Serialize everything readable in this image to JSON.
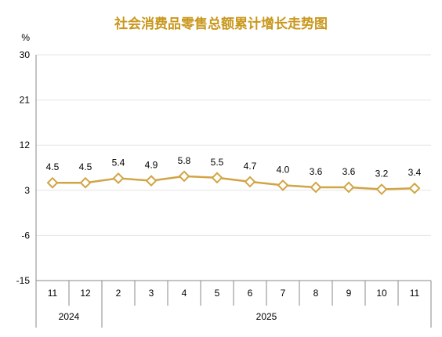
{
  "colors": {
    "title": "#C9971C",
    "series": "#D1A545",
    "marker_fill": "#FFFFFF",
    "gridline": "#E6E6E6",
    "axis": "#888888",
    "text": "#000000"
  },
  "chart_data": {
    "type": "line",
    "title": "社会消费品零售总额累计增长走势图",
    "ylabel": "%",
    "xlabel": "",
    "ylim": [
      -15,
      30
    ],
    "yticks": [
      "30",
      "21",
      "12",
      "3",
      "-6",
      "-15"
    ],
    "ytick_values": [
      30,
      21,
      12,
      3,
      -6,
      -15
    ],
    "grid": true,
    "legend": "none",
    "categories": [
      "11",
      "12",
      "2",
      "3",
      "4",
      "5",
      "6",
      "7",
      "8",
      "9",
      "10",
      "11"
    ],
    "year_groups": [
      {
        "label": "2024",
        "count": 2
      },
      {
        "label": "2025",
        "count": 10
      }
    ],
    "series": [
      {
        "values": [
          4.5,
          4.5,
          5.4,
          4.9,
          5.8,
          5.5,
          4.7,
          4.0,
          3.6,
          3.6,
          3.2,
          3.4
        ],
        "labels": [
          "4.5",
          "4.5",
          "5.4",
          "4.9",
          "5.8",
          "5.5",
          "4.7",
          "4.0",
          "3.6",
          "3.6",
          "3.2",
          "3.4"
        ],
        "marker": "diamond"
      }
    ]
  }
}
